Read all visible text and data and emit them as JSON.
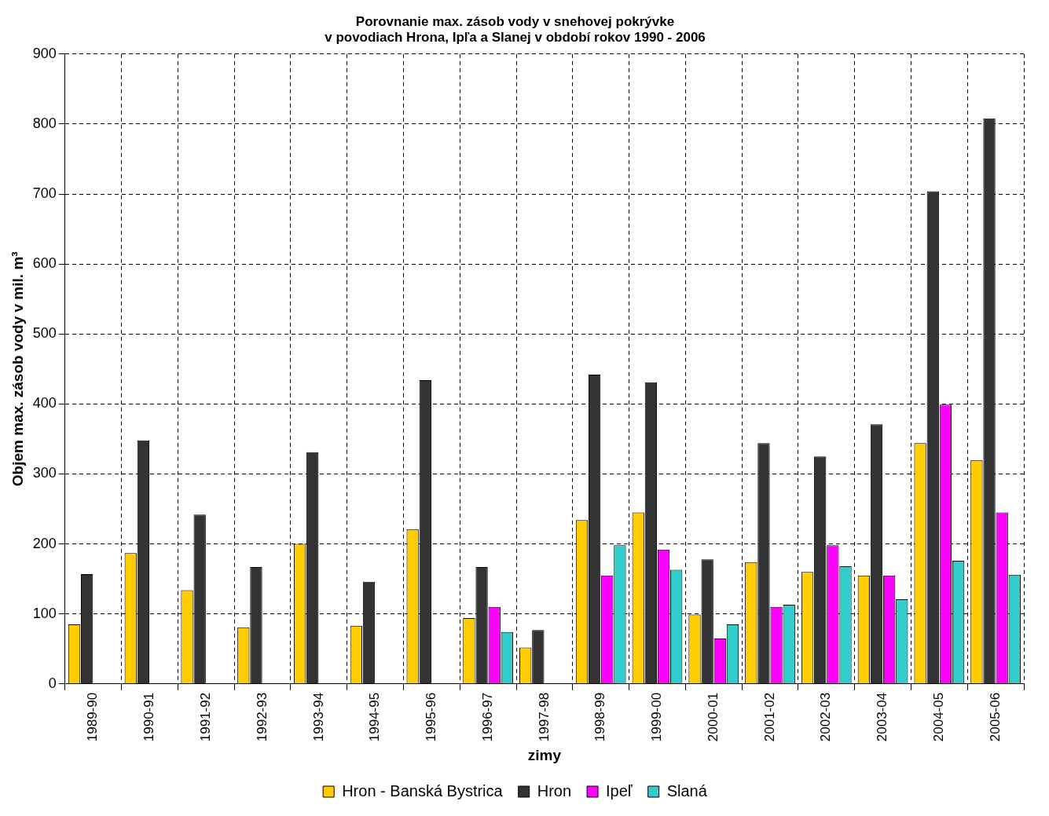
{
  "chart_data": {
    "type": "bar",
    "title": "Porovnanie max. zásob vody v snehovej pokrývke\nv povodiach Hrona, Ipľa a Slanej v období rokov 1990 - 2006",
    "xlabel": "zimy",
    "ylabel": "Objem max. zásob vody v mil. m³",
    "categories": [
      "1989-90",
      "1990-91",
      "1991-92",
      "1992-93",
      "1993-94",
      "1994-95",
      "1995-96",
      "1996-97",
      "1997-98",
      "1998-99",
      "1999-00",
      "2000-01",
      "2001-02",
      "2002-03",
      "2003-04",
      "2004-05",
      "2005-06"
    ],
    "series": [
      {
        "name": "Hron - Banská Bystrica",
        "color": "#ffcc00",
        "values": [
          85,
          187,
          134,
          81,
          200,
          83,
          221,
          94,
          52,
          234,
          245,
          99,
          174,
          160,
          155,
          344,
          320
        ]
      },
      {
        "name": "Hron",
        "color": "#333333",
        "values": [
          157,
          348,
          242,
          167,
          331,
          146,
          434,
          167,
          77,
          442,
          431,
          178,
          344,
          325,
          371,
          704,
          808
        ]
      },
      {
        "name": "Ipeľ",
        "color": "#ff00ff",
        "values": [
          null,
          null,
          null,
          null,
          null,
          null,
          null,
          110,
          null,
          155,
          192,
          65,
          110,
          198,
          155,
          399,
          245
        ]
      },
      {
        "name": "Slaná",
        "color": "#33cccc",
        "values": [
          null,
          null,
          null,
          null,
          null,
          null,
          null,
          74,
          null,
          198,
          163,
          85,
          113,
          168,
          121,
          176,
          156
        ]
      }
    ],
    "ylim": [
      0,
      900
    ],
    "yticks": [
      0,
      100,
      200,
      300,
      400,
      500,
      600,
      700,
      800,
      900
    ],
    "grid": true,
    "legend": "bottom"
  }
}
